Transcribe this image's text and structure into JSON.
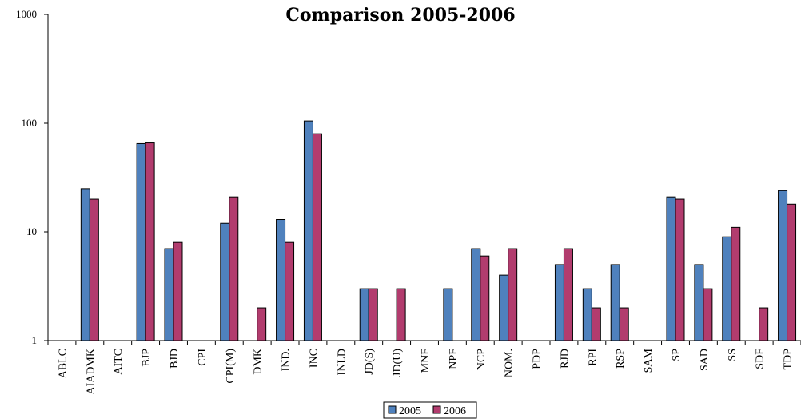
{
  "chart_data": {
    "type": "bar",
    "title": "Comparison 2005-2006",
    "xlabel": "",
    "ylabel": "",
    "yscale": "log",
    "ylim": [
      1,
      1000
    ],
    "yticks": [
      "1",
      "10",
      "100",
      "1000"
    ],
    "grid": false,
    "legend_position": "bottom-center",
    "categories": [
      "ABLC",
      "AIADMK",
      "AITC",
      "BJP",
      "BJD",
      "CPI",
      "CPI(M)",
      "DMK",
      "IND.",
      "INC",
      "INLD",
      "JD(S)",
      "JD(U)",
      "MNF",
      "NPF",
      "NCP",
      "NOM.",
      "PDP",
      "RJD",
      "RPI",
      "RSP",
      "SAM",
      "SP",
      "SAD",
      "SS",
      "SDF",
      "TDP"
    ],
    "series": [
      {
        "name": "2005",
        "color": "#4f81bd",
        "values": [
          1,
          25,
          1,
          65,
          7,
          1,
          12,
          1,
          13,
          105,
          1,
          3,
          1,
          1,
          3,
          7,
          4,
          1,
          5,
          3,
          5,
          1,
          21,
          5,
          9,
          1,
          24
        ]
      },
      {
        "name": "2006",
        "color": "#b23c6e",
        "values": [
          1,
          20,
          1,
          66,
          8,
          1,
          21,
          2,
          8,
          80,
          1,
          3,
          3,
          1,
          1,
          6,
          7,
          1,
          7,
          2,
          2,
          1,
          20,
          3,
          11,
          2,
          18
        ]
      }
    ]
  }
}
